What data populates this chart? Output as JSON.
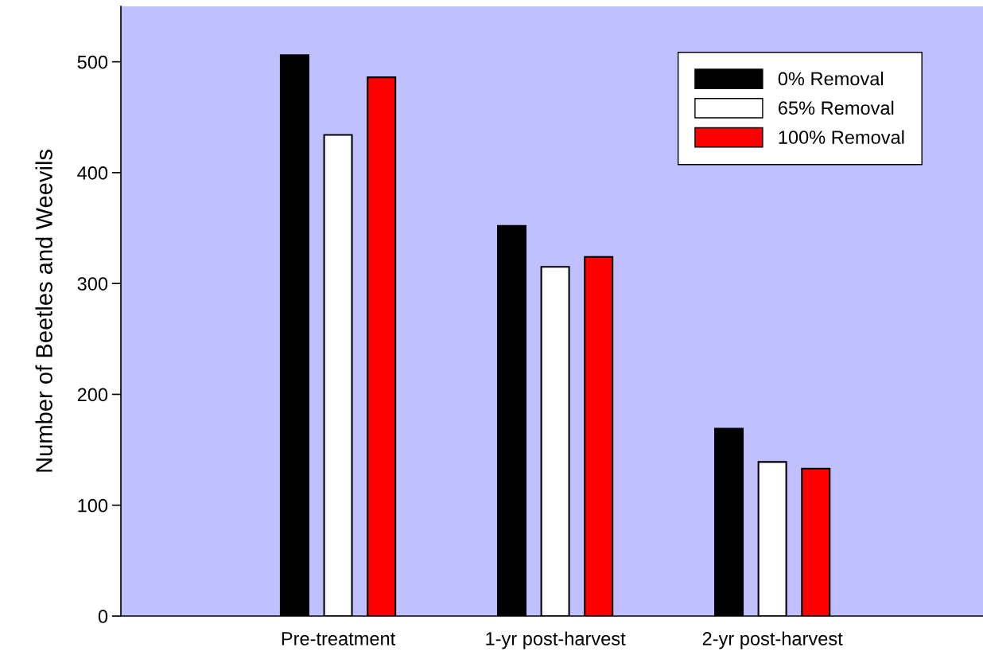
{
  "chart_data": {
    "type": "bar",
    "ylabel": "Number of Beetles and Weevils",
    "categories": [
      "Pre-treatment",
      "1-yr post-harvest",
      "2-yr post-harvest"
    ],
    "series": [
      {
        "name": "0% Removal",
        "color": "#000000",
        "values": [
          506,
          352,
          169
        ]
      },
      {
        "name": "65% Removal",
        "color": "#ffffff",
        "values": [
          434,
          315,
          139
        ]
      },
      {
        "name": "100% Removal",
        "color": "#ff0000",
        "values": [
          486,
          324,
          133
        ]
      }
    ],
    "ylim": [
      0,
      550
    ],
    "yticks": [
      0,
      100,
      200,
      300,
      400,
      500
    ],
    "grid": false,
    "legend": "top right"
  }
}
